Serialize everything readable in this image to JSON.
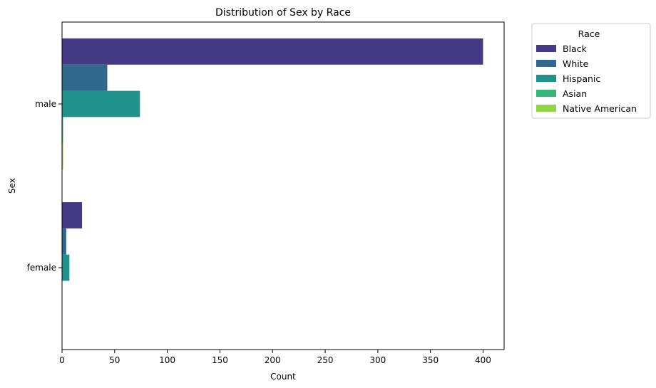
{
  "chart_data": {
    "type": "bar",
    "orientation": "horizontal",
    "title": "Distribution of Sex by Race",
    "xlabel": "Count",
    "ylabel": "Sex",
    "categories": [
      "male",
      "female"
    ],
    "series": [
      {
        "name": "Black",
        "color": "#443983",
        "values": [
          400,
          19
        ]
      },
      {
        "name": "White",
        "color": "#31688e",
        "values": [
          43,
          4
        ]
      },
      {
        "name": "Hispanic",
        "color": "#21918c",
        "values": [
          74,
          7
        ]
      },
      {
        "name": "Asian",
        "color": "#35b779",
        "values": [
          1,
          0
        ]
      },
      {
        "name": "Native American",
        "color": "#90d743",
        "values": [
          1,
          0
        ]
      }
    ],
    "xlim": [
      0,
      420
    ],
    "xticks": [
      0,
      50,
      100,
      150,
      200,
      250,
      300,
      350,
      400
    ],
    "grid": false,
    "legend": {
      "title": "Race",
      "placement": "outside-right-top"
    }
  }
}
